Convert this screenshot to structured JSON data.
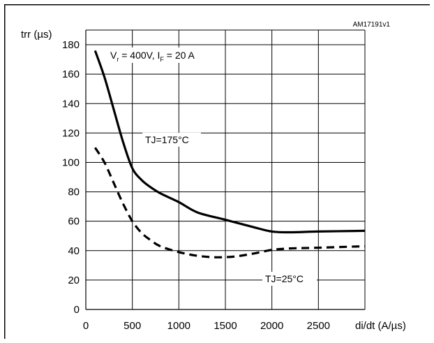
{
  "chart_data": {
    "type": "line",
    "figure_code": "AM17191v1",
    "ylabel": "trr (µs)",
    "xlabel": "di/dt (A/µs)",
    "xlim": [
      0,
      3000
    ],
    "ylim": [
      0,
      190
    ],
    "xticks": [
      0,
      500,
      1000,
      1500,
      2000,
      2500
    ],
    "yticks": [
      0,
      20,
      40,
      60,
      80,
      100,
      120,
      140,
      160,
      180
    ],
    "grid": true,
    "conditions": {
      "vr_symbol": "V",
      "vr_sub": "r",
      "vr_text": " = 400V, ",
      "if_symbol": "I",
      "if_sub": "F",
      "if_text": " = 20 A"
    },
    "series": [
      {
        "name": "TJ=175°C",
        "style": "solid",
        "color": "#000000",
        "x": [
          100,
          200,
          300,
          400,
          500,
          600,
          700,
          800,
          1000,
          1200,
          1500,
          1800,
          2000,
          2200,
          2500,
          3000
        ],
        "y": [
          176,
          158,
          136,
          114,
          96,
          88,
          83,
          79,
          73,
          66,
          61,
          56,
          53,
          52.5,
          53,
          53.5
        ]
      },
      {
        "name": "TJ=25°C",
        "style": "dashed",
        "color": "#000000",
        "x": [
          100,
          200,
          300,
          400,
          500,
          600,
          700,
          800,
          1000,
          1200,
          1400,
          1600,
          1800,
          2000,
          2200,
          2500,
          3000
        ],
        "y": [
          110,
          100,
          86,
          72,
          60,
          52,
          47,
          43,
          39,
          36.5,
          35.5,
          36,
          38,
          40.5,
          41.5,
          42,
          43
        ]
      }
    ]
  }
}
